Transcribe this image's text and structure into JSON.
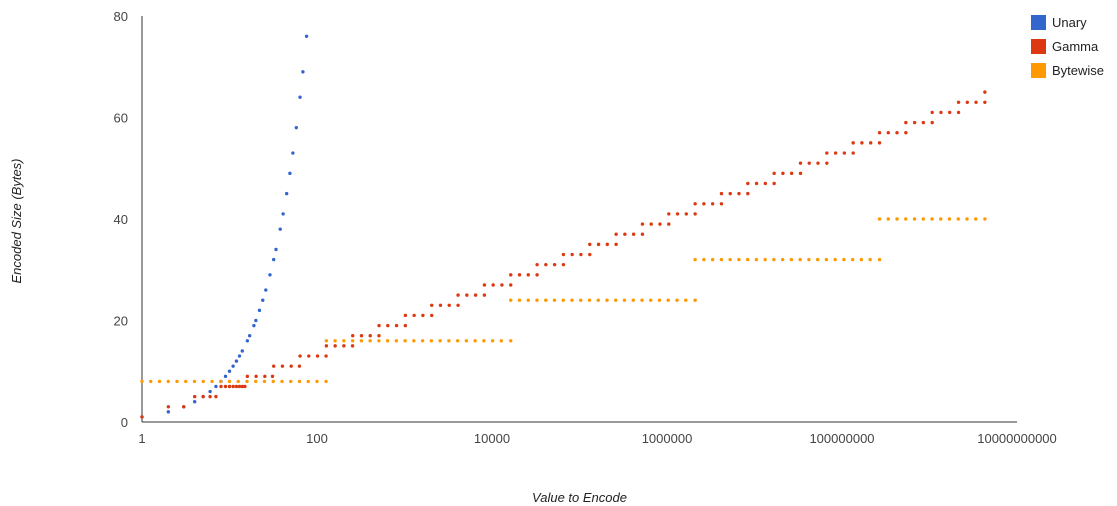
{
  "chart_data": {
    "type": "scatter",
    "title": "",
    "xlabel": "Value to Encode",
    "ylabel": "Encoded Size (Bytes)",
    "x_scale": "log",
    "xlim": [
      1,
      10000000000
    ],
    "ylim": [
      0,
      80
    ],
    "x_ticks": [
      "1",
      "100",
      "10000",
      "1000000",
      "100000000",
      "10000000000"
    ],
    "y_ticks": [
      "0",
      "20",
      "40",
      "60",
      "80"
    ],
    "grid": false,
    "legend_position": "top-right",
    "series": [
      {
        "name": "Unary",
        "color": "#3366cc",
        "points": [
          [
            1,
            1
          ],
          [
            2,
            2
          ],
          [
            3,
            3
          ],
          [
            4,
            4
          ],
          [
            5,
            5
          ],
          [
            6,
            6
          ],
          [
            7,
            7
          ],
          [
            8,
            8
          ],
          [
            9,
            9
          ],
          [
            10,
            10
          ],
          [
            11,
            11
          ],
          [
            12,
            12
          ],
          [
            13,
            13
          ],
          [
            14,
            14
          ],
          [
            16,
            16
          ],
          [
            17,
            17
          ],
          [
            19,
            19
          ],
          [
            20,
            20
          ],
          [
            22,
            22
          ],
          [
            24,
            24
          ],
          [
            26,
            26
          ],
          [
            29,
            29
          ],
          [
            32,
            32
          ],
          [
            34,
            34
          ],
          [
            38,
            38
          ],
          [
            41,
            41
          ],
          [
            45,
            45
          ],
          [
            49,
            49
          ],
          [
            53,
            53
          ],
          [
            58,
            58
          ],
          [
            64,
            64
          ],
          [
            69,
            69
          ],
          [
            76,
            76
          ]
        ]
      },
      {
        "name": "Gamma",
        "color": "#dc3912",
        "segments": [
          {
            "n": 0,
            "y": 1
          },
          {
            "n": 1,
            "y": 3
          },
          {
            "n": 2,
            "y": 5
          },
          {
            "n": 3,
            "y": 7
          },
          {
            "n": 4,
            "y": 9
          },
          {
            "n": 5,
            "y": 11
          },
          {
            "n": 6,
            "y": 13
          },
          {
            "n": 7,
            "y": 15
          },
          {
            "n": 8,
            "y": 17
          },
          {
            "n": 9,
            "y": 19
          },
          {
            "n": 10,
            "y": 21
          },
          {
            "n": 11,
            "y": 23
          },
          {
            "n": 12,
            "y": 25
          },
          {
            "n": 13,
            "y": 27
          },
          {
            "n": 14,
            "y": 29
          },
          {
            "n": 15,
            "y": 31
          },
          {
            "n": 16,
            "y": 33
          },
          {
            "n": 17,
            "y": 35
          },
          {
            "n": 18,
            "y": 37
          },
          {
            "n": 19,
            "y": 39
          },
          {
            "n": 20,
            "y": 41
          },
          {
            "n": 21,
            "y": 43
          },
          {
            "n": 22,
            "y": 45
          },
          {
            "n": 23,
            "y": 47
          },
          {
            "n": 24,
            "y": 49
          },
          {
            "n": 25,
            "y": 51
          },
          {
            "n": 26,
            "y": 53
          },
          {
            "n": 27,
            "y": 55
          },
          {
            "n": 28,
            "y": 57
          },
          {
            "n": 29,
            "y": 59
          },
          {
            "n": 30,
            "y": 61
          },
          {
            "n": 31,
            "y": 63
          },
          {
            "n": 32,
            "y": 65
          }
        ]
      },
      {
        "name": "Bytewise",
        "color": "#ff9900",
        "segments": [
          {
            "from": 1,
            "to": 127,
            "y": 8
          },
          {
            "from": 128,
            "to": 16383,
            "y": 16
          },
          {
            "from": 16384,
            "to": 2097151,
            "y": 24
          },
          {
            "from": 2097152,
            "to": 268435455,
            "y": 32
          },
          {
            "from": 268435456,
            "to": 4294967295,
            "y": 40
          }
        ]
      }
    ]
  }
}
